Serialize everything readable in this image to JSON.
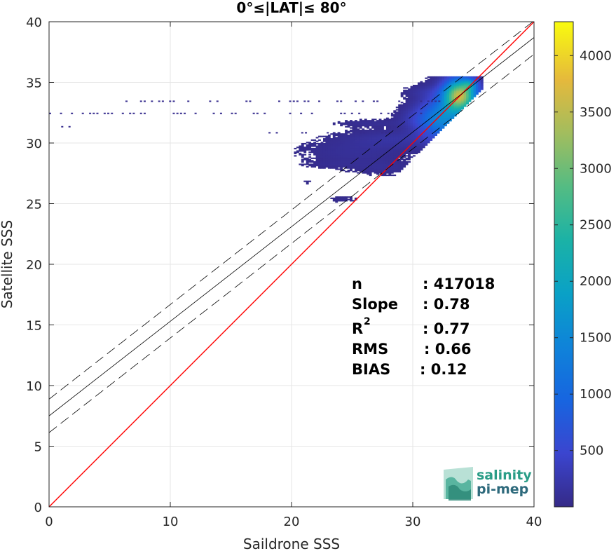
{
  "chart_data": {
    "type": "heatmap",
    "title": "0°≤|LAT|≤ 80°",
    "xlabel": "Saildrone SSS",
    "ylabel": "Satellite SSS",
    "xlim": [
      0,
      40
    ],
    "ylim": [
      0,
      40
    ],
    "xticks": [
      "0",
      "10",
      "20",
      "30",
      "40"
    ],
    "yticks": [
      "0",
      "5",
      "10",
      "15",
      "20",
      "25",
      "30",
      "35",
      "40"
    ],
    "grid": true,
    "colorbar": {
      "range": [
        1,
        4300
      ],
      "ticks": [
        "500",
        "1000",
        "1500",
        "2000",
        "2500",
        "3000",
        "3500",
        "4000"
      ],
      "tick_values": [
        500,
        1000,
        1500,
        2000,
        2500,
        3000,
        3500,
        4000
      ],
      "colormap": "parula"
    },
    "reference_line": {
      "slope": 1,
      "intercept": 0,
      "color": "#ff0000"
    },
    "fit_line": {
      "slope": 0.78,
      "intercept": 7.5,
      "color": "#000000"
    },
    "fit_band": {
      "offset": 1.38,
      "style": "dashed",
      "color": "#000000"
    },
    "stats": [
      {
        "label": "n",
        "value": ": 417018"
      },
      {
        "label": "Slope",
        "value": ": 0.78"
      },
      {
        "label": "R",
        "sup": "2",
        "value": ": 0.77"
      },
      {
        "label": "RMS",
        "value": ": 0.66"
      },
      {
        "label": "BIAS",
        "value": ": 0.12"
      }
    ],
    "clusters": [
      {
        "x": 33.8,
        "y": 33.9,
        "sx": 0.9,
        "sy": 0.9,
        "count": 3400
      },
      {
        "x": 32.4,
        "y": 32.0,
        "sx": 1.3,
        "sy": 1.2,
        "count": 1400
      },
      {
        "x": 34.6,
        "y": 34.8,
        "sx": 0.4,
        "sy": 0.3,
        "count": 900
      },
      {
        "x": 30.6,
        "y": 31.9,
        "sx": 1.2,
        "sy": 0.6,
        "count": 250
      },
      {
        "x": 28.5,
        "y": 30.3,
        "sx": 2.6,
        "sy": 0.5,
        "count": 160
      },
      {
        "x": 31.2,
        "y": 34.2,
        "sx": 1.3,
        "sy": 0.3,
        "count": 110
      },
      {
        "x": 26.2,
        "y": 31.6,
        "sx": 1.8,
        "sy": 0.2,
        "count": 90
      },
      {
        "x": 25.2,
        "y": 29.2,
        "sx": 3.0,
        "sy": 0.8,
        "count": 110
      },
      {
        "x": 27.6,
        "y": 27.9,
        "sx": 1.8,
        "sy": 0.4,
        "count": 80
      },
      {
        "x": 24.2,
        "y": 25.3,
        "sx": 0.9,
        "sy": 0.2,
        "count": 60
      },
      {
        "x": 23.0,
        "y": 28.2,
        "sx": 1.5,
        "sy": 0.2,
        "count": 40
      },
      {
        "x": 21.0,
        "y": 26.7,
        "sx": 1.0,
        "sy": 0.3,
        "count": 30
      }
    ],
    "sparse_rows": [
      {
        "y": 33.5,
        "x_from": 6.0,
        "x_to": 32.5
      },
      {
        "y": 32.5,
        "x_from": 0.0,
        "x_to": 31.0
      },
      {
        "y": 31.4,
        "x_from": 0.4,
        "x_to": 2.0
      },
      {
        "y": 30.9,
        "x_from": 17.5,
        "x_to": 29.0
      }
    ]
  },
  "logo": {
    "line1": "salinity",
    "line2": "pi-mep"
  },
  "colors": {
    "axis": "#262626",
    "grid": "#e6e6e6",
    "logo_top": "#2a9d87",
    "logo_bottom": "#2e6a7c"
  }
}
